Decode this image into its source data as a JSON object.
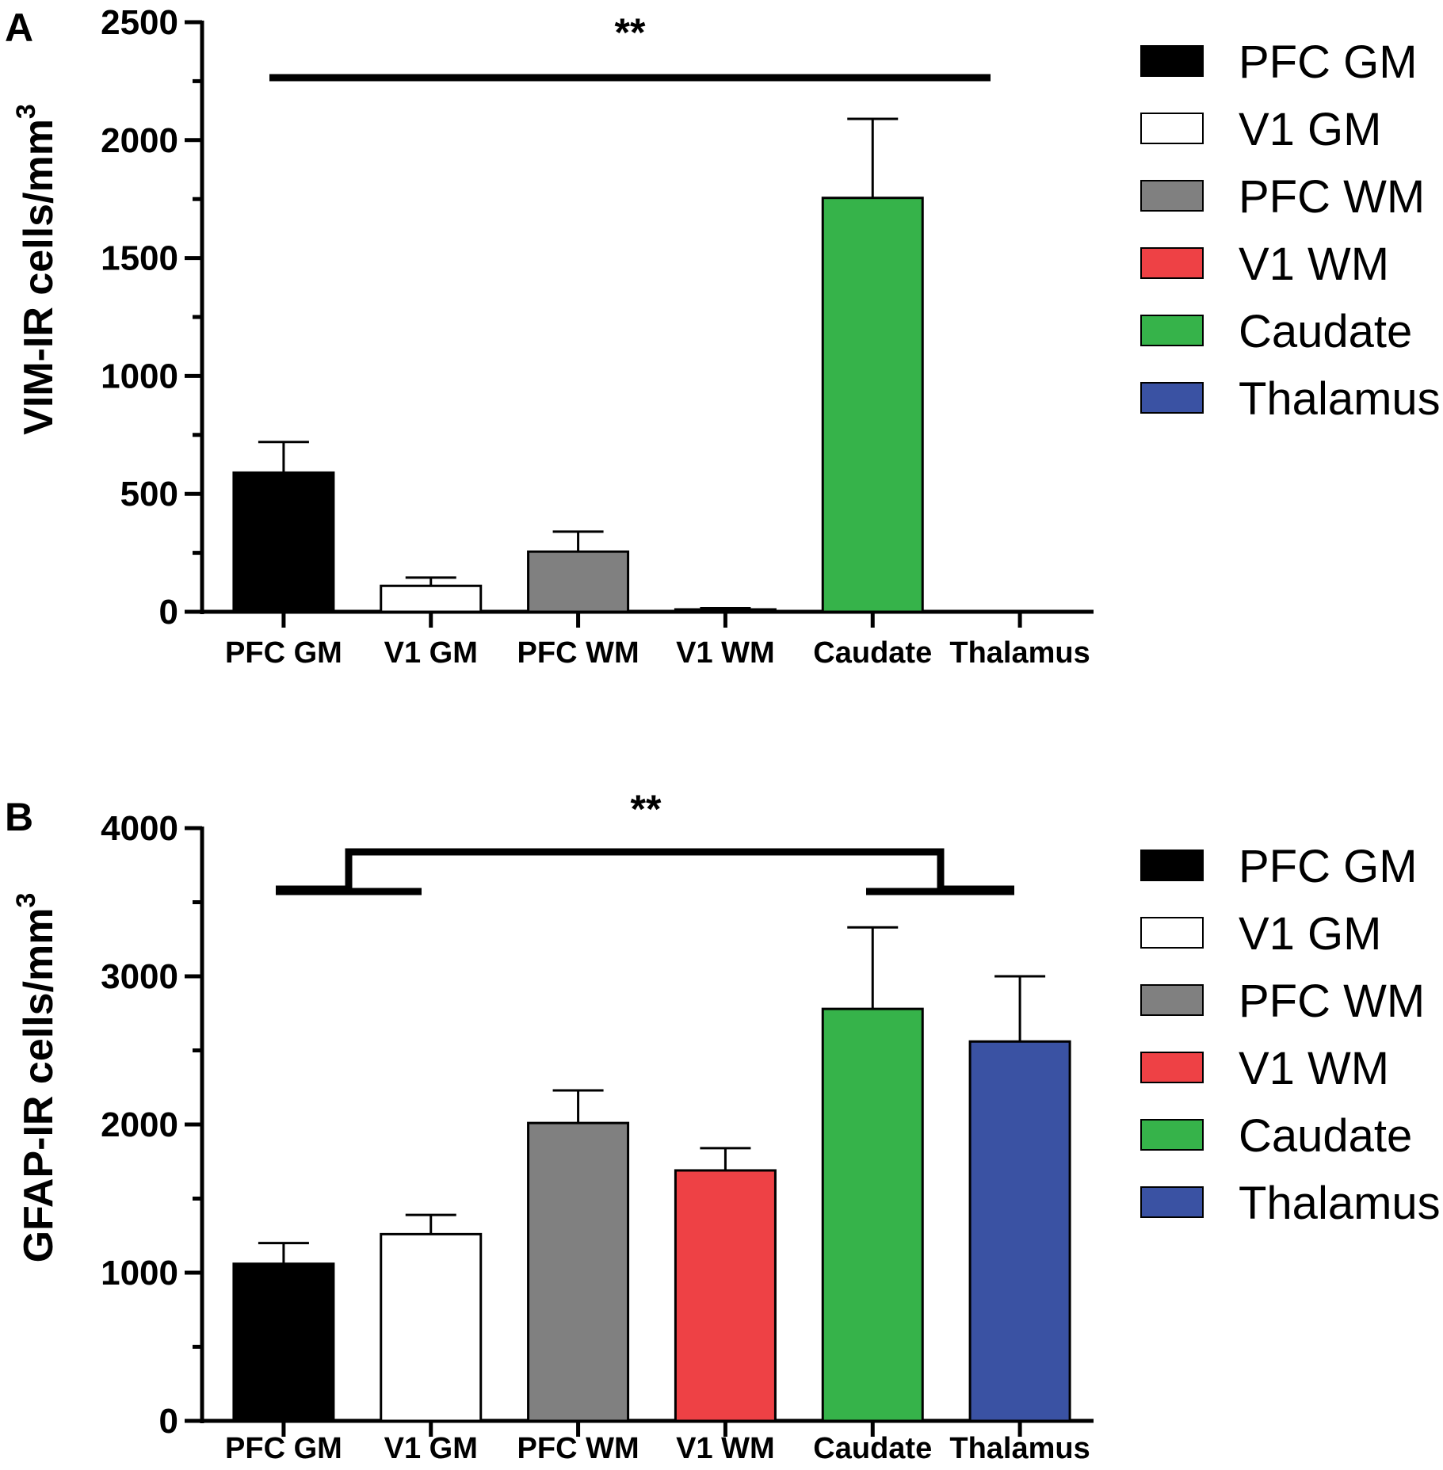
{
  "panels": {
    "a": {
      "letter": "A",
      "significance": "**",
      "y_title_main": "VIM-IR cells/mm",
      "y_title_sup": "3"
    },
    "b": {
      "letter": "B",
      "significance": "**",
      "y_title_main": "GFAP-IR cells/mm",
      "y_title_sup": "3"
    }
  },
  "colors": {
    "PFC GM": "#000000",
    "V1 GM": "#ffffff",
    "PFC WM": "#808080",
    "V1 WM": "#ee4145",
    "Caudate": "#36b34a",
    "Thalamus": "#3a52a3"
  },
  "chart_data": [
    {
      "type": "bar",
      "title": "",
      "xlabel": "",
      "ylabel": "VIM-IR cells/mm3",
      "ylim": [
        0,
        2500
      ],
      "yticks": [
        0,
        500,
        1000,
        1500,
        2000,
        2500
      ],
      "categories": [
        "PFC GM",
        "V1 GM",
        "PFC WM",
        "V1 WM",
        "Caudate",
        "Thalamus"
      ],
      "values": [
        590,
        110,
        255,
        10,
        1755,
        0
      ],
      "errors": [
        130,
        35,
        85,
        5,
        335,
        0
      ],
      "legend": [
        "PFC GM",
        "V1 GM",
        "PFC WM",
        "V1 WM",
        "Caudate",
        "Thalamus"
      ],
      "legend_position": "right",
      "annotations": [
        {
          "text": "**",
          "type": "line",
          "from": "PFC GM",
          "to": "Thalamus"
        }
      ]
    },
    {
      "type": "bar",
      "title": "",
      "xlabel": "",
      "ylabel": "GFAP-IR cells/mm3",
      "ylim": [
        0,
        4000
      ],
      "yticks": [
        0,
        1000,
        2000,
        3000,
        4000
      ],
      "categories": [
        "PFC GM",
        "V1 GM",
        "PFC WM",
        "V1 WM",
        "Caudate",
        "Thalamus"
      ],
      "values": [
        1060,
        1260,
        2010,
        1690,
        2780,
        2560
      ],
      "errors": [
        140,
        130,
        220,
        150,
        550,
        440
      ],
      "legend": [
        "PFC GM",
        "V1 GM",
        "PFC WM",
        "V1 WM",
        "Caudate",
        "Thalamus"
      ],
      "legend_position": "right",
      "annotations": [
        {
          "text": "**",
          "type": "bracket",
          "from": [
            "PFC GM",
            "V1 GM"
          ],
          "to": [
            "Caudate",
            "Thalamus"
          ]
        }
      ]
    }
  ]
}
